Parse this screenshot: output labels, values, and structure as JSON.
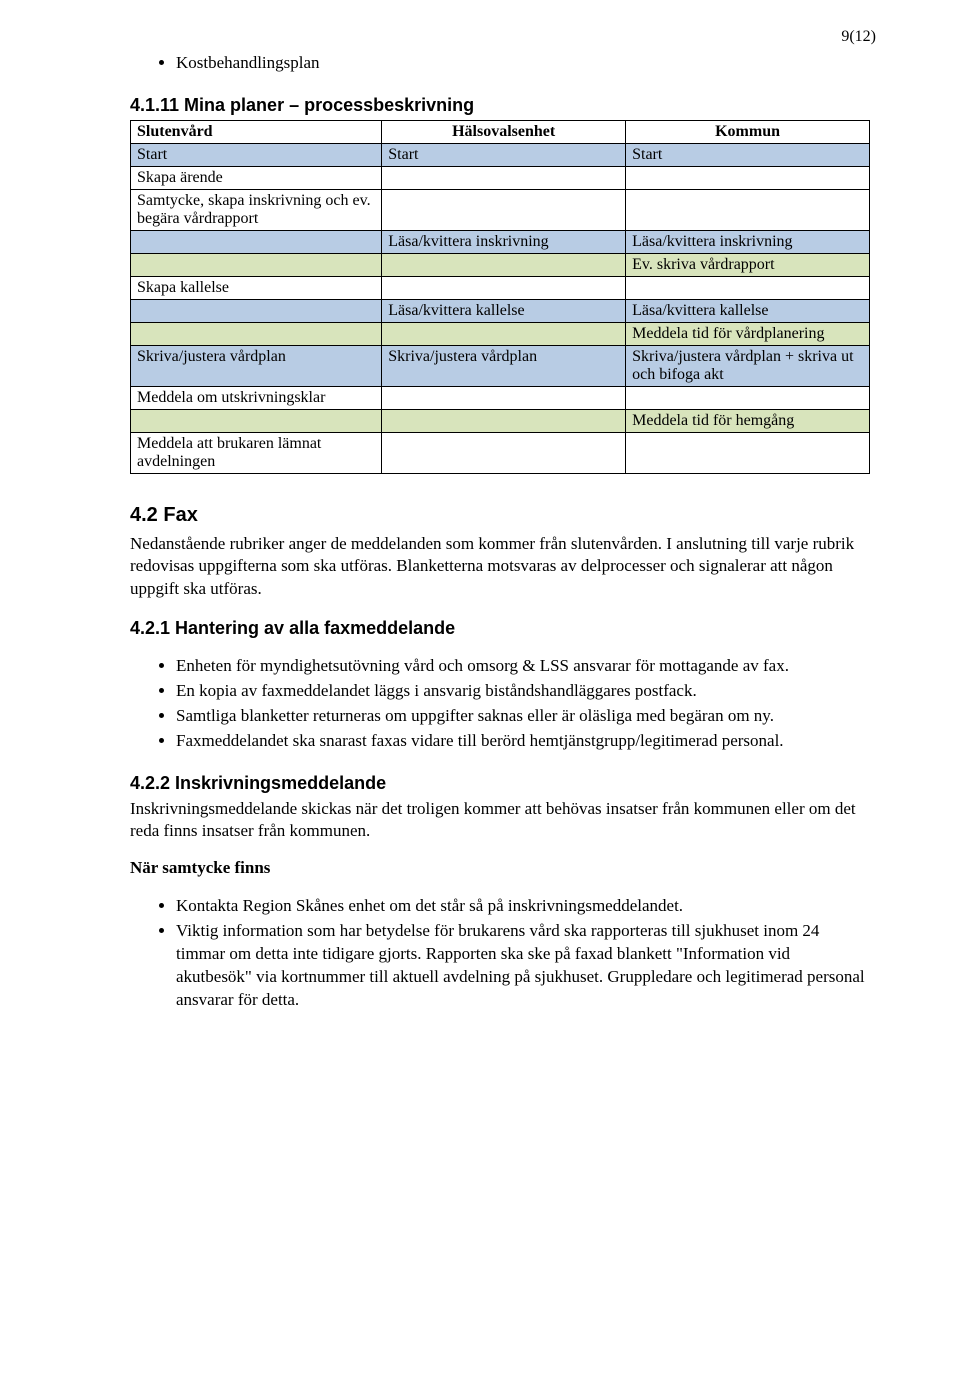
{
  "page_number": "9(12)",
  "top_bullet": "Kostbehandlingsplan",
  "section_411": {
    "title": "4.1.11 Mina planer – processbeskrivning",
    "table": {
      "colors": {
        "blue": "#b8cce4",
        "green": "#d8e4bc",
        "border": "#000000"
      },
      "col_widths_pct": [
        34,
        33,
        33
      ],
      "headers": [
        "Slutenvård",
        "Hälsovalsenhet",
        "Kommun"
      ],
      "rows": [
        {
          "cells": [
            "Start",
            "Start",
            "Start"
          ],
          "color": "blue"
        },
        {
          "cells": [
            "Skapa ärende",
            "",
            ""
          ],
          "color": null
        },
        {
          "cells": [
            "Samtycke, skapa inskrivning och ev. begära vårdrapport",
            "",
            ""
          ],
          "color": null
        },
        {
          "cells": [
            "",
            "Läsa/kvittera inskrivning",
            "Läsa/kvittera inskrivning"
          ],
          "color": "blue"
        },
        {
          "cells": [
            "",
            "",
            "Ev. skriva vårdrapport"
          ],
          "color": "green"
        },
        {
          "cells": [
            "Skapa kallelse",
            "",
            ""
          ],
          "color": null
        },
        {
          "cells": [
            "",
            "Läsa/kvittera kallelse",
            "Läsa/kvittera kallelse"
          ],
          "color": "blue"
        },
        {
          "cells": [
            "",
            "",
            "Meddela tid för vårdplanering"
          ],
          "color": "green"
        },
        {
          "cells": [
            "Skriva/justera vårdplan",
            "Skriva/justera vårdplan",
            "Skriva/justera vårdplan + skriva ut och bifoga akt"
          ],
          "color": "blue"
        },
        {
          "cells": [
            "Meddela om utskrivningsklar",
            "",
            ""
          ],
          "color": null
        },
        {
          "cells": [
            "",
            "",
            "Meddela tid för hemgång"
          ],
          "color": "green"
        },
        {
          "cells": [
            "Meddela att brukaren lämnat avdelningen",
            "",
            ""
          ],
          "color": null
        }
      ]
    }
  },
  "section_42": {
    "title": "4.2 Fax",
    "para": "Nedanstående rubriker anger de meddelanden som kommer från slutenvården. I anslutning till varje rubrik redovisas uppgifterna som ska utföras. Blanketterna motsvaras av delprocesser och signalerar att någon uppgift ska utföras."
  },
  "section_421": {
    "title": "4.2.1 Hantering av alla faxmeddelande",
    "bullets": [
      "Enheten för myndighetsutövning vård och omsorg & LSS ansvarar för mottagande av fax.",
      "En kopia av faxmeddelandet läggs i ansvarig biståndshandläggares postfack.",
      "Samtliga blanketter returneras om uppgifter saknas eller är oläsliga med begäran om ny.",
      "Faxmeddelandet ska snarast faxas vidare till berörd hemtjänstgrupp/legitimerad personal."
    ]
  },
  "section_422": {
    "title": "4.2.2 Inskrivningsmeddelande",
    "para": "Inskrivningsmeddelande skickas när det troligen kommer att behövas insatser från kommunen eller om det reda finns insatser från kommunen.",
    "subhead": "När samtycke finns",
    "bullets": [
      "Kontakta Region Skånes enhet om det står så på inskrivningsmeddelandet.",
      "Viktig information som har betydelse för brukarens vård ska rapporteras till sjukhuset inom 24 timmar om detta inte tidigare gjorts. Rapporten ska ske på faxad blankett \"Information vid akutbesök\" via kortnummer till aktuell avdelning på sjukhuset. Gruppledare och legitimerad personal ansvarar för detta."
    ]
  }
}
